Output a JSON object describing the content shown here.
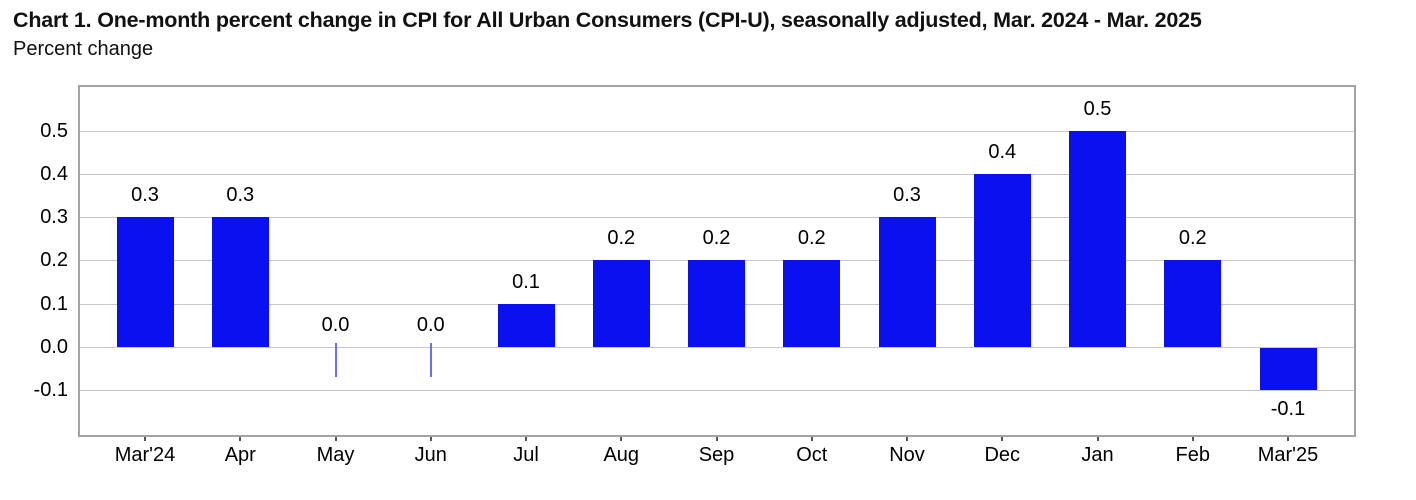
{
  "header": {
    "title": "Chart 1. One-month percent change in CPI for All Urban Consumers (CPI-U), seasonally adjusted, Mar. 2024 - Mar. 2025",
    "subtitle": "Percent change"
  },
  "chart_data": {
    "type": "bar",
    "title": "Chart 1. One-month percent change in CPI for All Urban Consumers (CPI-U), seasonally adjusted, Mar. 2024 - Mar. 2025",
    "ylabel": "Percent change",
    "categories": [
      "Mar'24",
      "Apr",
      "May",
      "Jun",
      "Jul",
      "Aug",
      "Sep",
      "Oct",
      "Nov",
      "Dec",
      "Jan",
      "Feb",
      "Mar'25"
    ],
    "values": [
      0.3,
      0.3,
      0.0,
      0.0,
      0.1,
      0.2,
      0.2,
      0.2,
      0.3,
      0.4,
      0.5,
      0.2,
      -0.1
    ],
    "value_labels": [
      "0.3",
      "0.3",
      "0.0",
      "0.0",
      "0.1",
      "0.2",
      "0.2",
      "0.2",
      "0.3",
      "0.4",
      "0.5",
      "0.2",
      "-0.1"
    ],
    "yticks": [
      0.5,
      0.4,
      0.3,
      0.2,
      0.1,
      0.0,
      -0.1
    ],
    "ytick_labels": [
      "0.5",
      "0.4",
      "0.3",
      "0.2",
      "0.1",
      "0.0",
      "-0.1"
    ],
    "ylim": [
      -0.2,
      0.6
    ],
    "grid": true,
    "legend": "none",
    "bar_color": "#0a10f0",
    "zero_marker_color": "#6b6ff4",
    "grid_color": "#c8c8c8",
    "frame_color": "#a3a3a3"
  }
}
